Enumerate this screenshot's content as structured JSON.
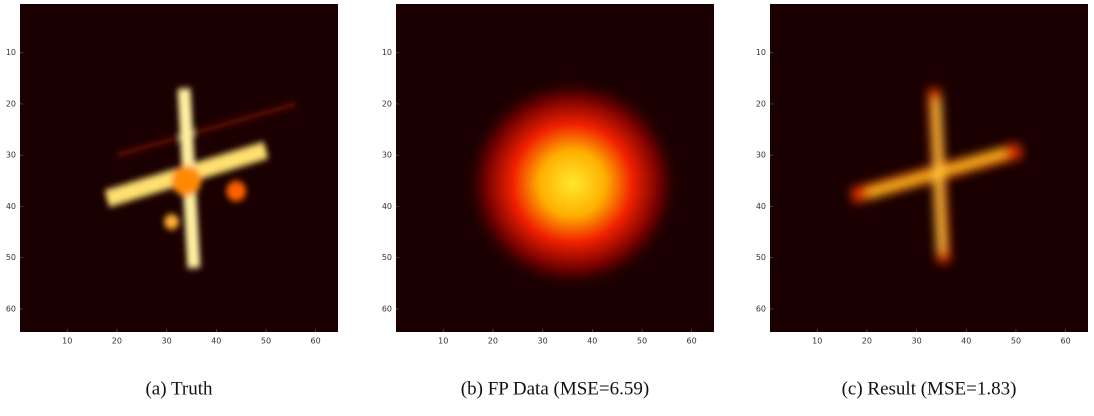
{
  "panels": [
    {
      "caption": "(a) Truth",
      "xlim": [
        0.5,
        64.5
      ],
      "ylim": [
        0.5,
        64.5
      ],
      "xticks": [
        10,
        20,
        30,
        40,
        50,
        60
      ],
      "yticks": [
        10,
        20,
        30,
        40,
        50,
        60
      ]
    },
    {
      "caption": "(b) FP Data (MSE=6.59)",
      "xlim": [
        0.5,
        64.5
      ],
      "ylim": [
        0.5,
        64.5
      ],
      "xticks": [
        10,
        20,
        30,
        40,
        50,
        60
      ],
      "yticks": [
        10,
        20,
        30,
        40,
        50,
        60
      ]
    },
    {
      "caption": "(c) Result (MSE=1.83)",
      "xlim": [
        0.5,
        64.5
      ],
      "ylim": [
        0.5,
        64.5
      ],
      "xticks": [
        10,
        20,
        30,
        40,
        50,
        60
      ],
      "yticks": [
        10,
        20,
        30,
        40,
        50,
        60
      ]
    }
  ]
}
